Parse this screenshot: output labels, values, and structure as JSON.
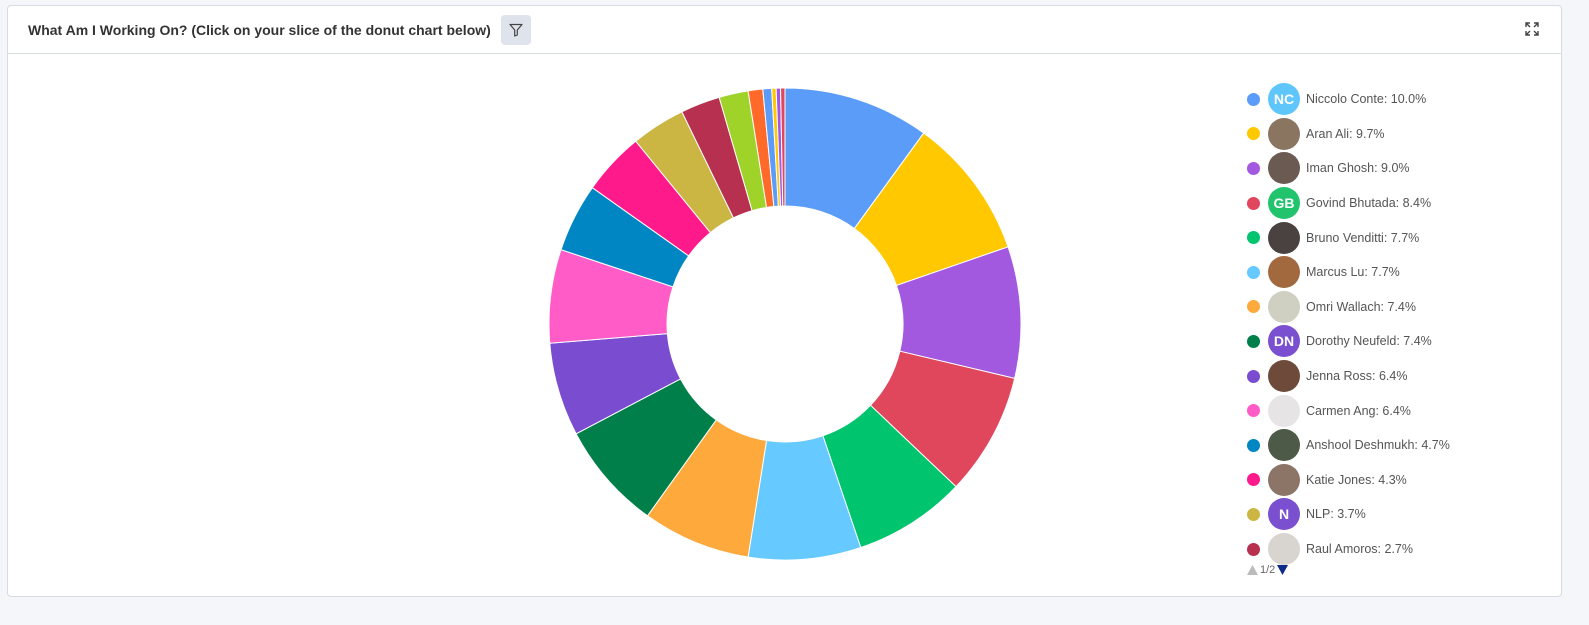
{
  "header": {
    "title": "What Am I Working On? (Click on your slice of the donut chart below)"
  },
  "chart_data": {
    "type": "pie",
    "donut": true,
    "legend_position": "right",
    "slices": [
      {
        "name": "Niccolo Conte",
        "value": 10.0,
        "label": "Niccolo Conte: 10.0%",
        "color": "#5b9cf8",
        "avatar": "NC",
        "avatar_color": "#5fc6fb"
      },
      {
        "name": "Aran Ali",
        "value": 9.7,
        "label": "Aran Ali: 9.7%",
        "color": "#ffc800",
        "avatar_color": "#8a7560"
      },
      {
        "name": "Iman Ghosh",
        "value": 9.0,
        "label": "Iman Ghosh: 9.0%",
        "color": "#a259e0",
        "avatar_color": "#6b5a52"
      },
      {
        "name": "Govind Bhutada",
        "value": 8.4,
        "label": "Govind Bhutada: 8.4%",
        "color": "#e0465c",
        "avatar": "GB",
        "avatar_color": "#21c46d"
      },
      {
        "name": "Bruno Venditti",
        "value": 7.7,
        "label": "Bruno Venditti: 7.7%",
        "color": "#00c56e",
        "avatar_color": "#4a4240"
      },
      {
        "name": "Marcus Lu",
        "value": 7.7,
        "label": "Marcus Lu: 7.7%",
        "color": "#66c9ff",
        "avatar_color": "#a2693f"
      },
      {
        "name": "Omri Wallach",
        "value": 7.4,
        "label": "Omri Wallach: 7.4%",
        "color": "#fda93c",
        "avatar_color": "#cfcfc2"
      },
      {
        "name": "Dorothy Neufeld",
        "value": 7.4,
        "label": "Dorothy Neufeld: 7.4%",
        "color": "#007f4a",
        "avatar": "DN",
        "avatar_color": "#7a4fd0"
      },
      {
        "name": "Jenna Ross",
        "value": 6.4,
        "label": "Jenna Ross: 6.4%",
        "color": "#7a4dd0",
        "avatar_color": "#6e4a3a"
      },
      {
        "name": "Carmen Ang",
        "value": 6.4,
        "label": "Carmen Ang: 6.4%",
        "color": "#ff5cc8",
        "avatar_color": "#e6e4e4"
      },
      {
        "name": "Anshool Deshmukh",
        "value": 4.7,
        "label": "Anshool Deshmukh: 4.7%",
        "color": "#0086c3",
        "avatar_color": "#4e5a48"
      },
      {
        "name": "Katie Jones",
        "value": 4.3,
        "label": "Katie Jones: 4.3%",
        "color": "#ff1a8c",
        "avatar_color": "#8c7466"
      },
      {
        "name": "NLP",
        "value": 3.7,
        "label": "NLP: 3.7%",
        "color": "#cbb644",
        "avatar": "N",
        "avatar_color": "#7a4fd0"
      },
      {
        "name": "Raul Amoros",
        "value": 2.7,
        "label": "Raul Amoros: 2.7%",
        "color": "#b8304f",
        "avatar_color": "#d8d4d0"
      },
      {
        "value": 2.0,
        "color": "#9fd32a"
      },
      {
        "value": 1.0,
        "color": "#ff6a2a"
      },
      {
        "value": 0.6,
        "color": "#5b9cf8"
      },
      {
        "value": 0.3,
        "color": "#ffc800"
      },
      {
        "value": 0.3,
        "color": "#a259e0"
      },
      {
        "value": 0.3,
        "color": "#e0465c"
      }
    ]
  },
  "legend": {
    "page": "1/2",
    "visible_count": 14
  }
}
